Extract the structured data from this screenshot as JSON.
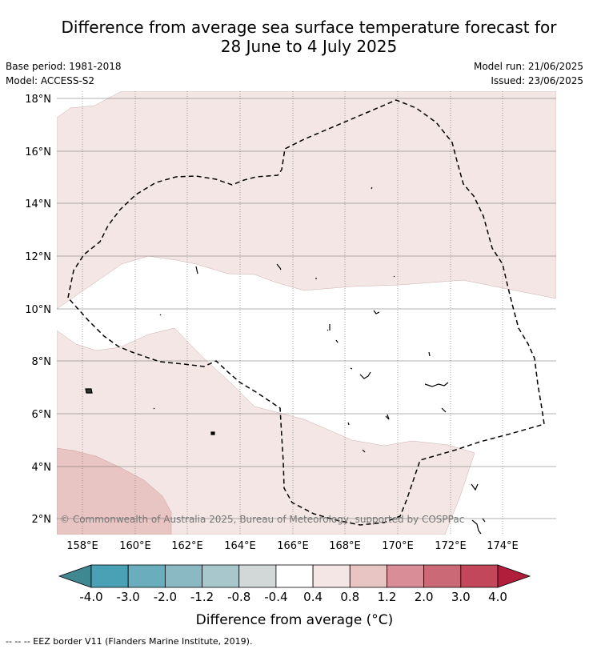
{
  "title": {
    "line1": "Difference from average sea surface temperature forecast for",
    "line2": "28 June to 4 July 2025"
  },
  "meta": {
    "base_period": "Base period: 1981-2018",
    "model": "Model: ACCESS-S2",
    "model_run": "Model run: 21/06/2025",
    "issued": "Issued: 23/06/2025"
  },
  "map": {
    "lat_labels": [
      "18°N",
      "16°N",
      "14°N",
      "12°N",
      "10°N",
      "8°N",
      "6°N",
      "4°N",
      "2°N"
    ],
    "lon_labels": [
      "158°E",
      "160°E",
      "162°E",
      "164°E",
      "166°E",
      "168°E",
      "170°E",
      "172°E",
      "174°E"
    ],
    "copyright": "© Commonwealth of Australia 2025, Bureau of Meteorology, supported by COSPPac",
    "colors": {
      "land": "#ffffff",
      "anomaly_0_4_to_0_8": "#f3e6e5",
      "anomaly_0_8_to_1_2": "#e8c5c2",
      "eez_border": "#000000"
    }
  },
  "colorbar": {
    "tick_labels": [
      "-4.0",
      "-3.0",
      "-2.0",
      "-1.2",
      "-0.8",
      "-0.4",
      "0.4",
      "0.8",
      "1.2",
      "2.0",
      "3.0",
      "4.0"
    ],
    "segment_colors": [
      "#3f8892",
      "#4aa0b4",
      "#6aadbc",
      "#8bb9c3",
      "#a7c7cc",
      "#d2d7d8",
      "#ffffff",
      "#f3e6e5",
      "#e8c5c2",
      "#d98d97",
      "#cb6a76",
      "#c2475a",
      "#b01e3c"
    ],
    "label": "Difference from average (°C)"
  },
  "footnote": "--  --  -- EEZ border V11 (Flanders Marine Institute, 2019)."
}
